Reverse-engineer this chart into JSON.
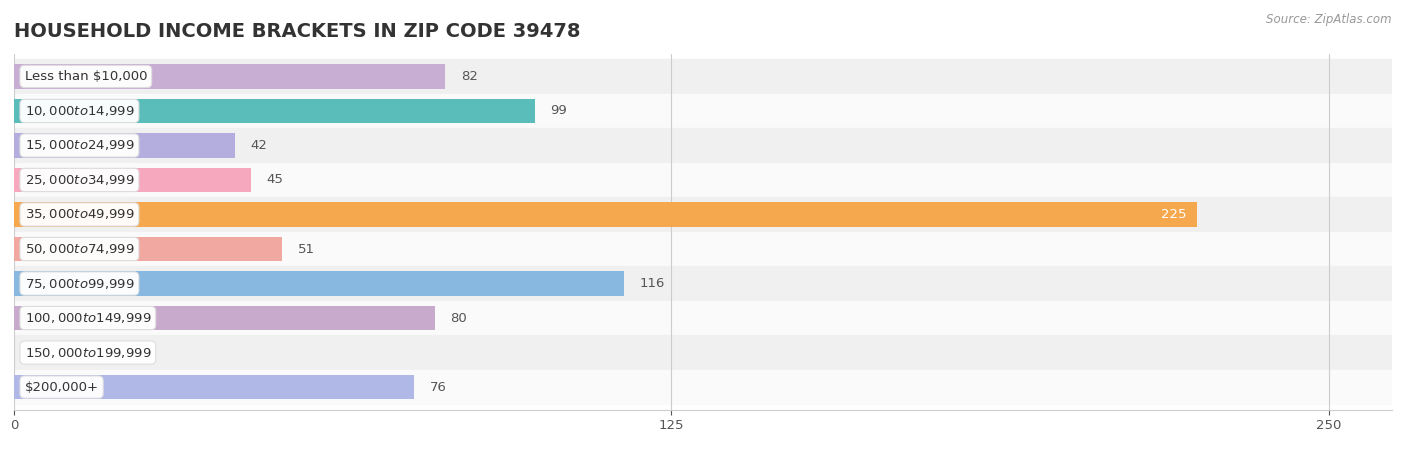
{
  "title": "HOUSEHOLD INCOME BRACKETS IN ZIP CODE 39478",
  "source": "Source: ZipAtlas.com",
  "categories": [
    "Less than $10,000",
    "$10,000 to $14,999",
    "$15,000 to $24,999",
    "$25,000 to $34,999",
    "$35,000 to $49,999",
    "$50,000 to $74,999",
    "$75,000 to $99,999",
    "$100,000 to $149,999",
    "$150,000 to $199,999",
    "$200,000+"
  ],
  "values": [
    82,
    99,
    42,
    45,
    225,
    51,
    116,
    80,
    0,
    76
  ],
  "bar_colors": [
    "#c9aed4",
    "#5bbdb9",
    "#b3aedd",
    "#f5a8be",
    "#f5a84e",
    "#f0a8a0",
    "#88b8e0",
    "#c8aacc",
    "#7acece",
    "#b0b8e8"
  ],
  "row_bg_colors": [
    "#f0f0f0",
    "#fafafa",
    "#f0f0f0",
    "#fafafa",
    "#f0f0f0",
    "#fafafa",
    "#f0f0f0",
    "#fafafa",
    "#f0f0f0",
    "#fafafa"
  ],
  "xlim": [
    0,
    262
  ],
  "xticks": [
    0,
    125,
    250
  ],
  "title_fontsize": 14,
  "label_fontsize": 9.5,
  "value_fontsize": 9.5,
  "source_fontsize": 8.5
}
